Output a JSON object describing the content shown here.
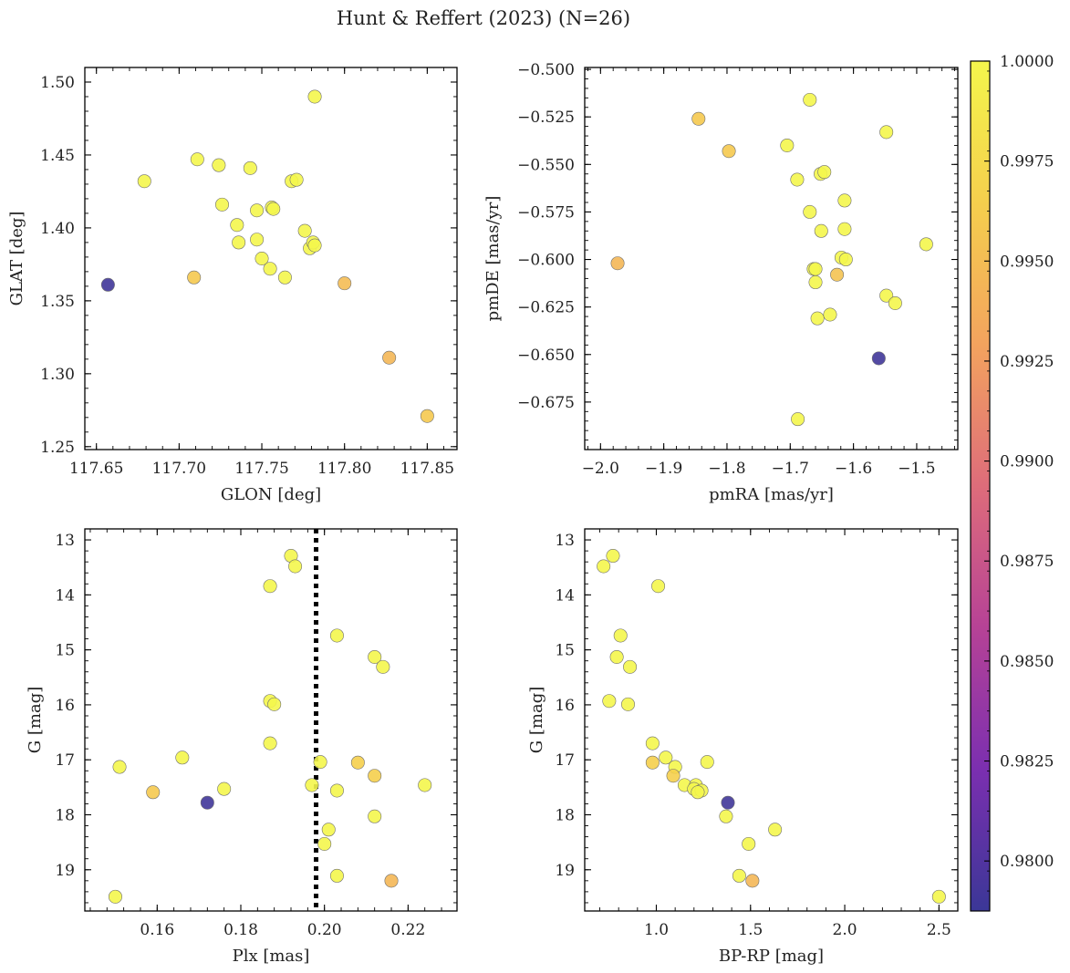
{
  "title": "Hunt & Reffert (2023) (N=26)",
  "colormap": {
    "name": "plasma",
    "stops": [
      "#3b3797",
      "#7b2fb0",
      "#b64296",
      "#de6c7a",
      "#f3a35e",
      "#f5cf4d",
      "#f4f64c"
    ],
    "vmin": 0.97875,
    "vmax": 1.0,
    "ticks": [
      "0.9800",
      "0.9825",
      "0.9850",
      "0.9875",
      "0.9900",
      "0.9925",
      "0.9950",
      "0.9975",
      "1.0000"
    ]
  },
  "chart_data": [
    {
      "type": "scatter",
      "id": "sky",
      "xlabel": "GLON [deg]",
      "ylabel": "GLAT [deg]",
      "xlim": [
        117.643,
        117.868
      ],
      "ylim": [
        1.248,
        1.51
      ],
      "xticks": [
        "117.65",
        "117.70",
        "117.75",
        "117.80",
        "117.85"
      ],
      "yticks": [
        "1.25",
        "1.30",
        "1.35",
        "1.40",
        "1.45",
        "1.50"
      ],
      "points": [
        {
          "x": 117.657,
          "y": 1.361,
          "c": 0.979
        },
        {
          "x": 117.679,
          "y": 1.432,
          "c": 1.0
        },
        {
          "x": 117.709,
          "y": 1.366,
          "c": 0.996
        },
        {
          "x": 117.711,
          "y": 1.447,
          "c": 1.0
        },
        {
          "x": 117.724,
          "y": 1.443,
          "c": 1.0
        },
        {
          "x": 117.726,
          "y": 1.416,
          "c": 1.0
        },
        {
          "x": 117.735,
          "y": 1.402,
          "c": 1.0
        },
        {
          "x": 117.736,
          "y": 1.39,
          "c": 1.0
        },
        {
          "x": 117.743,
          "y": 1.441,
          "c": 1.0
        },
        {
          "x": 117.747,
          "y": 1.412,
          "c": 1.0
        },
        {
          "x": 117.747,
          "y": 1.392,
          "c": 1.0
        },
        {
          "x": 117.75,
          "y": 1.379,
          "c": 1.0
        },
        {
          "x": 117.755,
          "y": 1.372,
          "c": 1.0
        },
        {
          "x": 117.756,
          "y": 1.414,
          "c": 1.0
        },
        {
          "x": 117.757,
          "y": 1.413,
          "c": 1.0
        },
        {
          "x": 117.764,
          "y": 1.366,
          "c": 1.0
        },
        {
          "x": 117.768,
          "y": 1.432,
          "c": 1.0
        },
        {
          "x": 117.771,
          "y": 1.433,
          "c": 1.0
        },
        {
          "x": 117.776,
          "y": 1.398,
          "c": 1.0
        },
        {
          "x": 117.779,
          "y": 1.386,
          "c": 1.0
        },
        {
          "x": 117.781,
          "y": 1.39,
          "c": 1.0
        },
        {
          "x": 117.782,
          "y": 1.388,
          "c": 1.0
        },
        {
          "x": 117.782,
          "y": 1.49,
          "c": 1.0
        },
        {
          "x": 117.8,
          "y": 1.362,
          "c": 0.995
        },
        {
          "x": 117.827,
          "y": 1.311,
          "c": 0.9945
        },
        {
          "x": 117.85,
          "y": 1.271,
          "c": 0.996
        }
      ]
    },
    {
      "type": "scatter",
      "id": "pm",
      "xlabel": "pmRA [mas/yr]",
      "ylabel": "pmDE [mas/yr]",
      "xlim": [
        -2.025,
        -1.435
      ],
      "ylim": [
        -0.7,
        -0.499
      ],
      "xticks": [
        "−2.0",
        "−1.9",
        "−1.8",
        "−1.7",
        "−1.6",
        "−1.5"
      ],
      "yticks": [
        "−0.500",
        "−0.525",
        "−0.550",
        "−0.575",
        "−0.600",
        "−0.625",
        "−0.650",
        "−0.675"
      ],
      "points": [
        {
          "x": -1.973,
          "y": -0.602,
          "c": 0.9945
        },
        {
          "x": -1.845,
          "y": -0.526,
          "c": 0.996
        },
        {
          "x": -1.797,
          "y": -0.543,
          "c": 0.996
        },
        {
          "x": -1.705,
          "y": -0.54,
          "c": 1.0
        },
        {
          "x": -1.689,
          "y": -0.558,
          "c": 1.0
        },
        {
          "x": -1.688,
          "y": -0.684,
          "c": 1.0
        },
        {
          "x": -1.669,
          "y": -0.516,
          "c": 1.0
        },
        {
          "x": -1.669,
          "y": -0.575,
          "c": 1.0
        },
        {
          "x": -1.663,
          "y": -0.605,
          "c": 1.0
        },
        {
          "x": -1.66,
          "y": -0.605,
          "c": 1.0
        },
        {
          "x": -1.66,
          "y": -0.612,
          "c": 1.0
        },
        {
          "x": -1.657,
          "y": -0.631,
          "c": 1.0
        },
        {
          "x": -1.652,
          "y": -0.555,
          "c": 1.0
        },
        {
          "x": -1.651,
          "y": -0.585,
          "c": 1.0
        },
        {
          "x": -1.646,
          "y": -0.554,
          "c": 1.0
        },
        {
          "x": -1.637,
          "y": -0.629,
          "c": 1.0
        },
        {
          "x": -1.626,
          "y": -0.608,
          "c": 0.9955
        },
        {
          "x": -1.619,
          "y": -0.599,
          "c": 1.0
        },
        {
          "x": -1.614,
          "y": -0.569,
          "c": 1.0
        },
        {
          "x": -1.614,
          "y": -0.584,
          "c": 1.0
        },
        {
          "x": -1.612,
          "y": -0.6,
          "c": 1.0
        },
        {
          "x": -1.56,
          "y": -0.652,
          "c": 0.979
        },
        {
          "x": -1.548,
          "y": -0.533,
          "c": 1.0
        },
        {
          "x": -1.548,
          "y": -0.619,
          "c": 1.0
        },
        {
          "x": -1.534,
          "y": -0.623,
          "c": 1.0
        },
        {
          "x": -1.485,
          "y": -0.592,
          "c": 1.0
        }
      ]
    },
    {
      "type": "scatter",
      "id": "plx",
      "xlabel": "Plx [mas]",
      "ylabel": "G [mag]",
      "xlim": [
        0.1427,
        0.2317
      ],
      "ylim": [
        19.75,
        12.8
      ],
      "y_inverted": true,
      "vline_x": 0.198,
      "xticks": [
        "0.16",
        "0.18",
        "0.20",
        "0.22"
      ],
      "yticks": [
        "13",
        "14",
        "15",
        "16",
        "17",
        "18",
        "19"
      ],
      "points": [
        {
          "x": 0.15,
          "y": 19.49,
          "c": 1.0
        },
        {
          "x": 0.151,
          "y": 17.13,
          "c": 1.0
        },
        {
          "x": 0.159,
          "y": 17.59,
          "c": 0.996
        },
        {
          "x": 0.166,
          "y": 16.96,
          "c": 1.0
        },
        {
          "x": 0.172,
          "y": 17.78,
          "c": 0.979
        },
        {
          "x": 0.176,
          "y": 17.53,
          "c": 1.0
        },
        {
          "x": 0.187,
          "y": 16.7,
          "c": 1.0
        },
        {
          "x": 0.187,
          "y": 15.93,
          "c": 1.0
        },
        {
          "x": 0.188,
          "y": 15.99,
          "c": 1.0
        },
        {
          "x": 0.187,
          "y": 13.84,
          "c": 1.0
        },
        {
          "x": 0.192,
          "y": 13.29,
          "c": 1.0
        },
        {
          "x": 0.193,
          "y": 13.48,
          "c": 1.0
        },
        {
          "x": 0.197,
          "y": 17.46,
          "c": 1.0
        },
        {
          "x": 0.199,
          "y": 17.04,
          "c": 1.0
        },
        {
          "x": 0.2,
          "y": 18.53,
          "c": 1.0
        },
        {
          "x": 0.201,
          "y": 18.27,
          "c": 1.0
        },
        {
          "x": 0.203,
          "y": 14.74,
          "c": 1.0
        },
        {
          "x": 0.203,
          "y": 17.56,
          "c": 1.0
        },
        {
          "x": 0.203,
          "y": 19.11,
          "c": 1.0
        },
        {
          "x": 0.208,
          "y": 17.05,
          "c": 0.9965
        },
        {
          "x": 0.212,
          "y": 15.13,
          "c": 1.0
        },
        {
          "x": 0.212,
          "y": 17.29,
          "c": 0.9965
        },
        {
          "x": 0.212,
          "y": 18.03,
          "c": 1.0
        },
        {
          "x": 0.214,
          "y": 15.31,
          "c": 1.0
        },
        {
          "x": 0.216,
          "y": 19.2,
          "c": 0.9945
        },
        {
          "x": 0.224,
          "y": 17.46,
          "c": 1.0
        }
      ]
    },
    {
      "type": "scatter",
      "id": "cmd",
      "xlabel": "BP-RP [mag]",
      "ylabel": "G [mag]",
      "xlim": [
        0.62,
        2.6
      ],
      "ylim": [
        19.75,
        12.8
      ],
      "y_inverted": true,
      "xticks": [
        "1.0",
        "1.5",
        "2.0",
        "2.5"
      ],
      "yticks": [
        "13",
        "14",
        "15",
        "16",
        "17",
        "18",
        "19"
      ],
      "points": [
        {
          "x": 0.72,
          "y": 13.48,
          "c": 1.0
        },
        {
          "x": 0.77,
          "y": 13.29,
          "c": 1.0
        },
        {
          "x": 1.01,
          "y": 13.84,
          "c": 1.0
        },
        {
          "x": 0.81,
          "y": 14.74,
          "c": 1.0
        },
        {
          "x": 0.79,
          "y": 15.13,
          "c": 1.0
        },
        {
          "x": 0.86,
          "y": 15.31,
          "c": 1.0
        },
        {
          "x": 0.75,
          "y": 15.93,
          "c": 1.0
        },
        {
          "x": 0.85,
          "y": 15.99,
          "c": 1.0
        },
        {
          "x": 0.98,
          "y": 16.7,
          "c": 1.0
        },
        {
          "x": 1.05,
          "y": 16.96,
          "c": 1.0
        },
        {
          "x": 0.98,
          "y": 17.05,
          "c": 0.9965
        },
        {
          "x": 1.27,
          "y": 17.04,
          "c": 1.0
        },
        {
          "x": 1.1,
          "y": 17.13,
          "c": 1.0
        },
        {
          "x": 1.09,
          "y": 17.29,
          "c": 0.9965
        },
        {
          "x": 1.15,
          "y": 17.46,
          "c": 1.0
        },
        {
          "x": 1.21,
          "y": 17.46,
          "c": 1.0
        },
        {
          "x": 1.2,
          "y": 17.53,
          "c": 1.0
        },
        {
          "x": 1.24,
          "y": 17.56,
          "c": 1.0
        },
        {
          "x": 1.22,
          "y": 17.59,
          "c": 1.0
        },
        {
          "x": 1.38,
          "y": 17.78,
          "c": 0.979
        },
        {
          "x": 1.37,
          "y": 18.03,
          "c": 1.0
        },
        {
          "x": 1.63,
          "y": 18.27,
          "c": 1.0
        },
        {
          "x": 1.49,
          "y": 18.53,
          "c": 1.0
        },
        {
          "x": 1.44,
          "y": 19.11,
          "c": 1.0
        },
        {
          "x": 1.51,
          "y": 19.2,
          "c": 0.9945
        },
        {
          "x": 2.5,
          "y": 19.49,
          "c": 1.0
        }
      ]
    }
  ]
}
